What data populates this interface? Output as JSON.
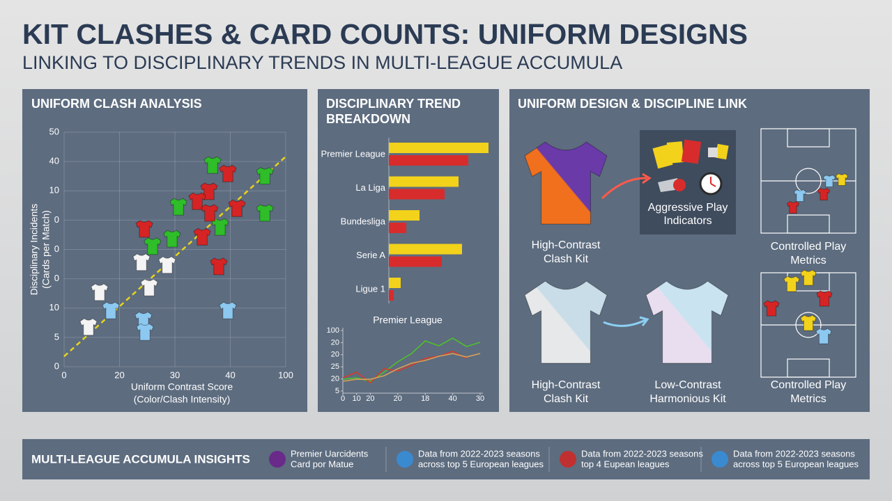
{
  "header": {
    "title": "KIT CLASHES & CARD COUNTS: UNIFORM DESIGNS",
    "subtitle": "LINKING TO DISCIPLINARY TRENDS IN MULTI-LEAGUE ACCUMULA"
  },
  "chart_data": [
    {
      "type": "scatter",
      "title": "UNIFORM CLASH ANALYSIS",
      "xlabel": [
        "Uniform Contrast Score",
        "(Color/Clash Intensity)"
      ],
      "ylabel": [
        "Disciplinary Incidents",
        "(Cards per Match)"
      ],
      "xlim": [
        0,
        100
      ],
      "xticks": [
        0,
        {
          "value": 25,
          "label": "20"
        },
        {
          "value": 50,
          "label": "30"
        },
        {
          "value": 75,
          "label": "40"
        },
        100
      ],
      "ylim": [
        0,
        50
      ],
      "yticks": [
        0,
        {
          "value": 6.25,
          "label": "5"
        },
        {
          "value": 12.5,
          "label": "10"
        },
        {
          "value": 18.75,
          "label": "0"
        },
        {
          "value": 25,
          "label": "0"
        },
        {
          "value": 31.25,
          "label": "0"
        },
        {
          "value": 37.5,
          "label": "10"
        },
        {
          "value": 43.75,
          "label": "40"
        },
        50
      ],
      "grid": true,
      "series": [
        {
          "color": "#2fbd2a",
          "x": [
            67.0,
            90.6,
            51.6,
            90.6,
            70.4,
            48.7,
            39.9
          ],
          "y": [
            43.0,
            40.7,
            34.1,
            32.8,
            29.8,
            27.3,
            25.7
          ]
        },
        {
          "color": "#d62424",
          "x": [
            73.9,
            65.4,
            60.1,
            65.7,
            78.0,
            36.2,
            62.3,
            69.8
          ],
          "y": [
            41.2,
            37.4,
            35.3,
            32.8,
            33.8,
            29.4,
            27.7,
            21.4
          ]
        },
        {
          "color": "#f4f4f4",
          "x": [
            34.9,
            46.5,
            38.4,
            16.0,
            11.0
          ],
          "y": [
            22.3,
            21.7,
            16.9,
            15.9,
            8.5
          ]
        },
        {
          "color": "#8cc8f0",
          "x": [
            21.1,
            35.8,
            36.5,
            73.9
          ],
          "y": [
            12.0,
            9.9,
            7.4,
            12.0
          ]
        }
      ],
      "trendline": {
        "color": "#e8d41c",
        "x": [
          0,
          100
        ],
        "y": [
          2.2,
          44.8
        ]
      }
    },
    {
      "type": "hbar",
      "title": [
        "DISCIPLINARY TREND",
        "BREAKDOWN"
      ],
      "categories": [
        "Premier League",
        "La Liga",
        "Bundesliga",
        "Serie A",
        "Ligue 1"
      ],
      "xlim": [
        0,
        3
      ],
      "series": [
        {
          "color": "#f2d21b",
          "values": [
            2.86,
            2.0,
            0.88,
            2.1,
            0.34
          ]
        },
        {
          "color": "#d82c2c",
          "values": [
            2.28,
            1.6,
            0.5,
            1.52,
            0.14
          ]
        }
      ]
    },
    {
      "type": "line",
      "title": "Premier League",
      "x": [
        0,
        3,
        6,
        9,
        12,
        15,
        18,
        21,
        24,
        27,
        30
      ],
      "xlim": [
        0,
        30
      ],
      "xticks": [
        0,
        {
          "value": 3,
          "label": "10"
        },
        {
          "value": 6,
          "label": "20"
        },
        {
          "value": 12,
          "label": "20"
        },
        18,
        {
          "value": 24,
          "label": "40"
        },
        {
          "value": 30,
          "label": "30"
        }
      ],
      "ylim": [
        0,
        100
      ],
      "yticks": [
        {
          "value": 0,
          "label": "5"
        },
        20,
        {
          "value": 40,
          "label": "25"
        },
        {
          "value": 60,
          "label": "20"
        },
        {
          "value": 80,
          "label": "20"
        },
        100
      ],
      "series": [
        {
          "color": "#4fc02c",
          "values": [
            19.5,
            21.8,
            16.1,
            31.0,
            48.3,
            62.0,
            82.8,
            74.7,
            87.4,
            73.6,
            80.5
          ]
        },
        {
          "color": "#d83a2a",
          "values": [
            21.8,
            31.0,
            13.8,
            36.8,
            33.3,
            42.5,
            54.0,
            57.5,
            65.5,
            54.0,
            null
          ]
        },
        {
          "color": "#d4a15a",
          "values": [
            16.1,
            19.5,
            19.5,
            25.3,
            36.8,
            46.0,
            50.6,
            57.5,
            62.0,
            56.3,
            62.0
          ]
        }
      ]
    }
  ],
  "design_panel": {
    "title": "UNIFORM DESIGN & DISCIPLINE LINK",
    "captions": [
      [
        "High-Contrast",
        "Clash Kit"
      ],
      [
        "Aggressive Play",
        "Indicators"
      ],
      [
        "Controlled Play",
        "Metrics"
      ],
      [
        "High-Contrast",
        "Clash Kit"
      ],
      [
        "Low-Contrast",
        "Harmonious Kit"
      ],
      [
        "Controlled Play",
        "Metrics"
      ]
    ]
  },
  "insights": {
    "title": "MULTI-LEAGUE ACCUMULA INSIGHTS",
    "items": [
      [
        "Premier Uarcidents",
        "Card por Matue"
      ],
      [
        "Data from 2022-2023 seasons",
        "across top 5 European leagues"
      ],
      [
        "Data from 2022-2023 seasons",
        "top 4 Eupean leagues"
      ],
      [
        "Data from 2022-2023 seasons",
        "across top 5 European leagues"
      ]
    ]
  }
}
